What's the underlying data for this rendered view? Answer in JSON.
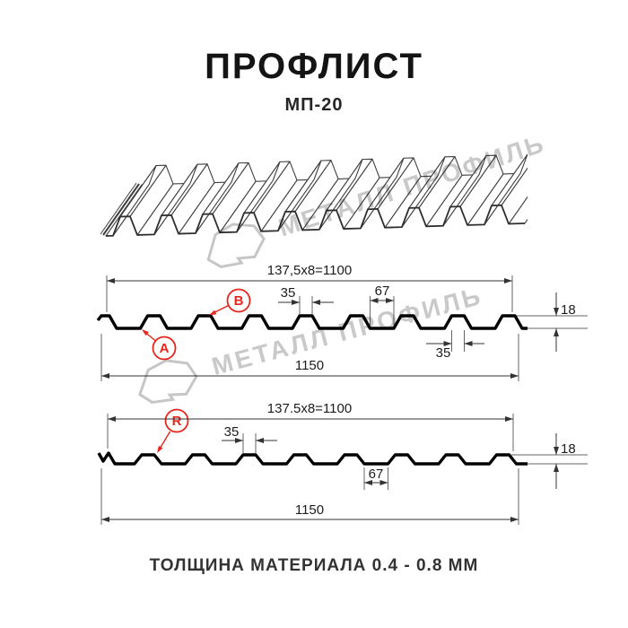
{
  "header": {
    "title": "ПРОФЛИСТ",
    "subtitle": "МП-20"
  },
  "watermark": {
    "text": "МЕТАЛЛ ПРОФИЛЬ"
  },
  "profile_a": {
    "useful_width": "137,5x8=1100",
    "rib_top_width": "35",
    "valley_width": "67",
    "height": "18",
    "overlap_rib_width": "35",
    "full_width": "1150",
    "marker_a": "A",
    "marker_b": "B"
  },
  "profile_r": {
    "useful_width": "137.5x8=1100",
    "rib_top_width": "35",
    "valley_width": "67",
    "height": "18",
    "full_width": "1150",
    "marker_r": "R"
  },
  "footer": {
    "thickness_note": "ТОЛЩИНА МАТЕРИАЛА 0.4 - 0.8 ММ"
  },
  "colors": {
    "accent_red": "#e8251c",
    "line_black": "#000000",
    "watermark_gray": "#c9c9c9"
  }
}
